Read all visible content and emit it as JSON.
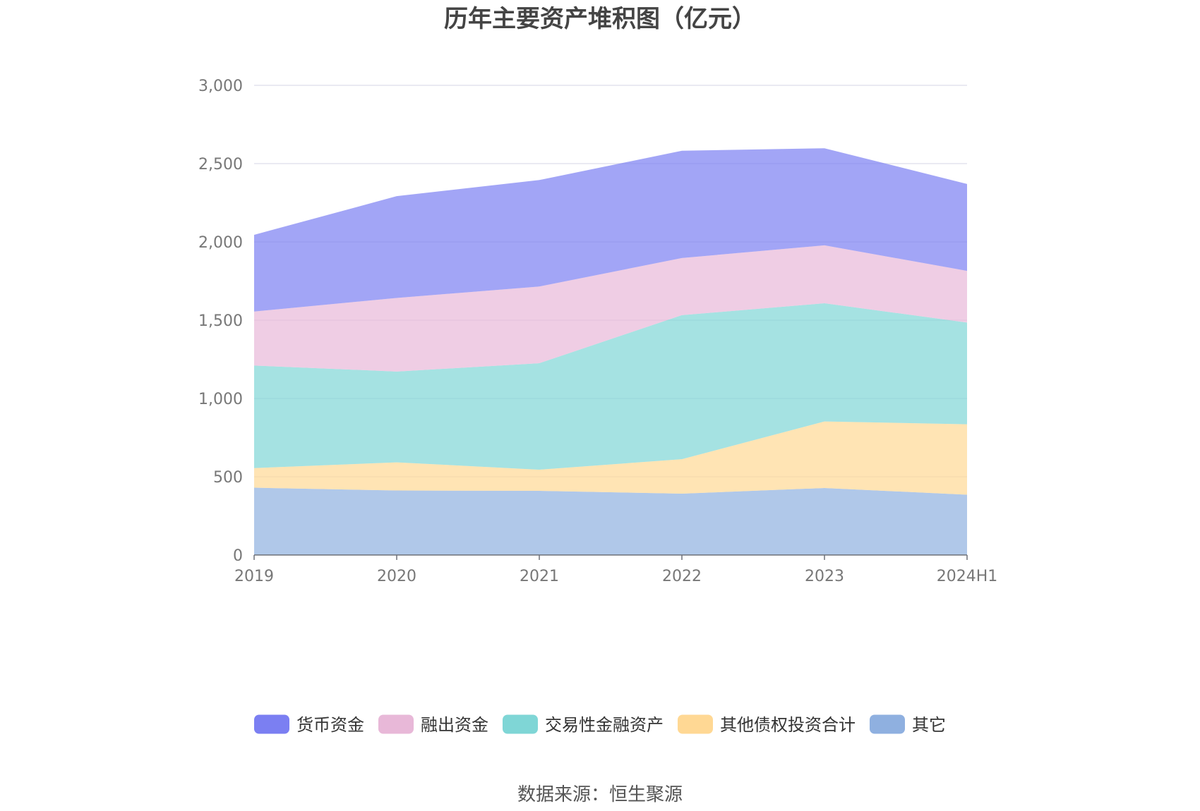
{
  "chart_data": {
    "type": "area",
    "stacked": true,
    "title": "历年主要资产堆积图（亿元）",
    "categories": [
      "2019",
      "2020",
      "2021",
      "2022",
      "2023",
      "2024H1"
    ],
    "ylim": [
      0,
      3000
    ],
    "yticks": [
      0,
      500,
      1000,
      1500,
      2000,
      2500,
      3000
    ],
    "ytick_labels": [
      "0",
      "500",
      "1,000",
      "1,500",
      "2,000",
      "2,500",
      "3,000"
    ],
    "grid": true,
    "legend_position": "bottom",
    "series": [
      {
        "name": "其它",
        "color": "#8fb0e0",
        "values": [
          430,
          412,
          410,
          392,
          428,
          385
        ]
      },
      {
        "name": "其他债权投资合计",
        "color": "#ffd894",
        "values": [
          125,
          180,
          135,
          220,
          425,
          450
        ]
      },
      {
        "name": "交易性金融资产",
        "color": "#7fd6d6",
        "values": [
          655,
          580,
          680,
          920,
          755,
          650
        ]
      },
      {
        "name": "融出资金",
        "color": "#e8b8d8",
        "values": [
          345,
          470,
          490,
          365,
          370,
          330
        ]
      },
      {
        "name": "货币资金",
        "color": "#7b7ff2",
        "values": [
          490,
          650,
          680,
          685,
          620,
          555
        ]
      }
    ],
    "legend_order": [
      "货币资金",
      "融出资金",
      "交易性金融资产",
      "其他债权投资合计",
      "其它"
    ]
  },
  "source": "数据来源：恒生聚源"
}
